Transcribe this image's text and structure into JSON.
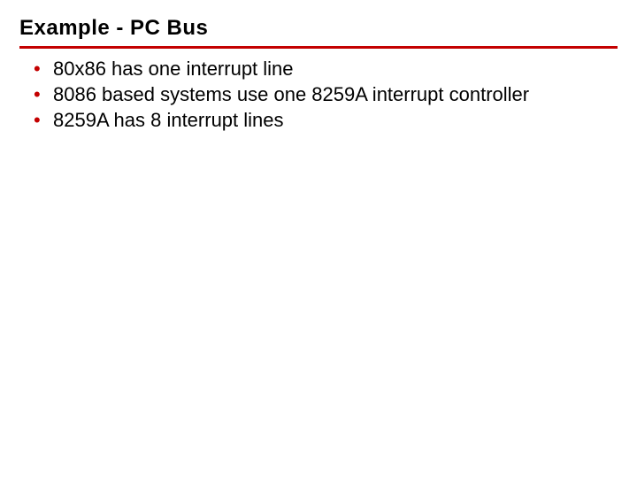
{
  "title": "Example - PC Bus",
  "bullets": [
    "80x86 has one interrupt line",
    "8086 based systems use one 8259A interrupt controller",
    "8259A has 8 interrupt lines"
  ],
  "colors": {
    "accent": "#c40000",
    "text": "#000000",
    "background": "#ffffff"
  },
  "typography": {
    "title_fontsize": 24,
    "title_weight": 900,
    "body_fontsize": 22,
    "body_weight": 400,
    "font_family": "Verdana, Tahoma, Arial, sans-serif"
  }
}
